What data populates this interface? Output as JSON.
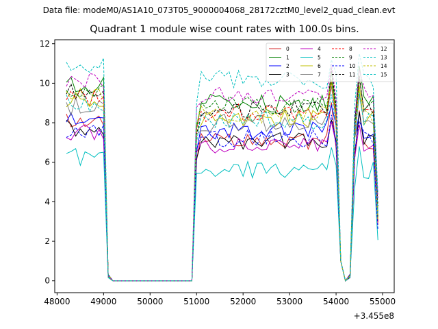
{
  "figure": {
    "suptitle": "Data file: modeM0/AS1A10_073T05_9000004068_28172cztM0_level2_quad_clean.evt"
  },
  "chart_data": {
    "type": "line",
    "title": "Quadrant 1 module wise count rates with 100.0s bins.",
    "xlabel": "",
    "ylabel": "",
    "x_offset_label": "+3.455e8",
    "xlim": [
      47950,
      55250
    ],
    "ylim": [
      -0.6,
      12.2
    ],
    "xticks": [
      48000,
      49000,
      50000,
      51000,
      52000,
      53000,
      54000,
      55000
    ],
    "yticks": [
      0,
      2,
      4,
      6,
      8,
      10,
      12
    ],
    "grid": false,
    "legend": {
      "placement": "top-right",
      "columns": 4
    },
    "x_breaks": [
      48200,
      48300,
      48400,
      48500,
      48600,
      48700,
      48800,
      48900,
      49000,
      49100,
      49200,
      49300,
      50900,
      51000,
      51100,
      51200,
      51300,
      51400,
      51500,
      51600,
      51700,
      51800,
      51900,
      52000,
      52100,
      52200,
      52300,
      52400,
      52500,
      52600,
      52700,
      52800,
      52900,
      53000,
      53100,
      53200,
      53300,
      53400,
      53500,
      53600,
      53700,
      53800,
      53900,
      54000,
      54100,
      54200,
      54300,
      54400,
      54500,
      54600,
      54700,
      54800,
      54900
    ],
    "x_active_start": 48200,
    "x_active_step": 100,
    "segments": [
      {
        "start": 48200,
        "end": 49000
      },
      {
        "start": 51000,
        "end": 54000
      },
      {
        "start": 54400,
        "end": 54900
      }
    ],
    "series": [
      {
        "name": "0",
        "color": "#d62728",
        "dash": "solid",
        "level": 7.0,
        "peak": 9.0
      },
      {
        "name": "1",
        "color": "#008000",
        "dash": "solid",
        "level": 9.0,
        "peak": 10.7
      },
      {
        "name": "2",
        "color": "#0000ff",
        "dash": "solid",
        "level": 7.6,
        "peak": 8.9
      },
      {
        "name": "3",
        "color": "#000000",
        "dash": "solid",
        "level": 7.1,
        "peak": 8.2
      },
      {
        "name": "4",
        "color": "#bf00bf",
        "dash": "solid",
        "level": 6.8,
        "peak": 8.0
      },
      {
        "name": "5",
        "color": "#00bfbf",
        "dash": "solid",
        "level": 5.6,
        "peak": 6.8
      },
      {
        "name": "6",
        "color": "#bfbf00",
        "dash": "solid",
        "level": 8.2,
        "peak": 10.1
      },
      {
        "name": "7",
        "color": "#808080",
        "dash": "solid",
        "level": 8.0,
        "peak": 9.5
      },
      {
        "name": "8",
        "color": "#ff0000",
        "dash": "dashed",
        "level": 8.5,
        "peak": 9.9
      },
      {
        "name": "9",
        "color": "#008000",
        "dash": "dashed",
        "level": 8.9,
        "peak": 10.3
      },
      {
        "name": "10",
        "color": "#0000ff",
        "dash": "dashed",
        "level": 7.2,
        "peak": 8.1
      },
      {
        "name": "11",
        "color": "#000000",
        "dash": "dashed",
        "level": 8.7,
        "peak": 10.3
      },
      {
        "name": "12",
        "color": "#bf00bf",
        "dash": "dashed",
        "level": 9.4,
        "peak": 10.8
      },
      {
        "name": "13",
        "color": "#00bfbf",
        "dash": "dashed",
        "level": 10.2,
        "peak": 11.6
      },
      {
        "name": "14",
        "color": "#bfbf00",
        "dash": "dashed",
        "level": 8.4,
        "peak": 10.0
      },
      {
        "name": "15",
        "color": "#00bfbf",
        "dash": "dashed",
        "level": 8.1,
        "peak": 9.7
      }
    ]
  }
}
